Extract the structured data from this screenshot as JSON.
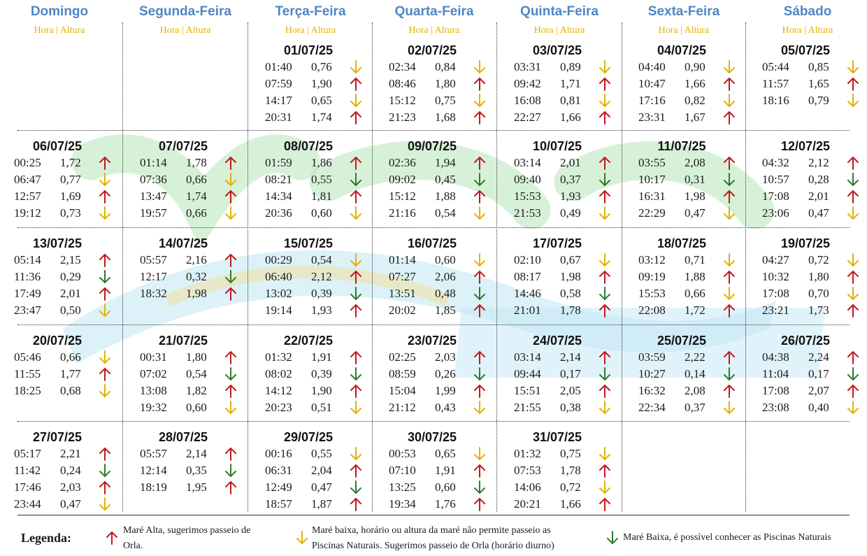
{
  "header": {
    "days": [
      "Domingo",
      "Segunda-Feira",
      "Terça-Feira",
      "Quarta-Feira",
      "Quinta-Feira",
      "Sexta-Feira",
      "Sábado"
    ],
    "subheader": "Hora | Altura"
  },
  "weeks": [
    [
      null,
      null,
      {
        "date": "01/07/25",
        "tides": [
          [
            "01:40",
            "0,76",
            "low-yellow"
          ],
          [
            "07:59",
            "1,90",
            "high"
          ],
          [
            "14:17",
            "0,65",
            "low-yellow"
          ],
          [
            "20:31",
            "1,74",
            "high"
          ]
        ]
      },
      {
        "date": "02/07/25",
        "tides": [
          [
            "02:34",
            "0,84",
            "low-yellow"
          ],
          [
            "08:46",
            "1,80",
            "high"
          ],
          [
            "15:12",
            "0,75",
            "low-yellow"
          ],
          [
            "21:23",
            "1,68",
            "high"
          ]
        ]
      },
      {
        "date": "03/07/25",
        "tides": [
          [
            "03:31",
            "0,89",
            "low-yellow"
          ],
          [
            "09:42",
            "1,71",
            "high"
          ],
          [
            "16:08",
            "0,81",
            "low-yellow"
          ],
          [
            "22:27",
            "1,66",
            "high"
          ]
        ]
      },
      {
        "date": "04/07/25",
        "tides": [
          [
            "04:40",
            "0,90",
            "low-yellow"
          ],
          [
            "10:47",
            "1,66",
            "high"
          ],
          [
            "17:16",
            "0,82",
            "low-yellow"
          ],
          [
            "23:31",
            "1,67",
            "high"
          ]
        ]
      },
      {
        "date": "05/07/25",
        "tides": [
          [
            "05:44",
            "0,85",
            "low-yellow"
          ],
          [
            "11:57",
            "1,65",
            "high"
          ],
          [
            "18:16",
            "0,79",
            "low-yellow"
          ]
        ]
      }
    ],
    [
      {
        "date": "06/07/25",
        "tides": [
          [
            "00:25",
            "1,72",
            "high"
          ],
          [
            "06:47",
            "0,77",
            "low-yellow"
          ],
          [
            "12:57",
            "1,69",
            "high"
          ],
          [
            "19:12",
            "0,73",
            "low-yellow"
          ]
        ]
      },
      {
        "date": "07/07/25",
        "tides": [
          [
            "01:14",
            "1,78",
            "high"
          ],
          [
            "07:36",
            "0,66",
            "low-yellow"
          ],
          [
            "13:47",
            "1,74",
            "high"
          ],
          [
            "19:57",
            "0,66",
            "low-yellow"
          ]
        ]
      },
      {
        "date": "08/07/25",
        "tides": [
          [
            "01:59",
            "1,86",
            "high"
          ],
          [
            "08:21",
            "0,55",
            "low-green"
          ],
          [
            "14:34",
            "1,81",
            "high"
          ],
          [
            "20:36",
            "0,60",
            "low-yellow"
          ]
        ]
      },
      {
        "date": "09/07/25",
        "tides": [
          [
            "02:36",
            "1,94",
            "high"
          ],
          [
            "09:02",
            "0,45",
            "low-green"
          ],
          [
            "15:12",
            "1,88",
            "high"
          ],
          [
            "21:16",
            "0,54",
            "low-yellow"
          ]
        ]
      },
      {
        "date": "10/07/25",
        "tides": [
          [
            "03:14",
            "2,01",
            "high"
          ],
          [
            "09:40",
            "0,37",
            "low-green"
          ],
          [
            "15:53",
            "1,93",
            "high"
          ],
          [
            "21:53",
            "0,49",
            "low-yellow"
          ]
        ]
      },
      {
        "date": "11/07/25",
        "tides": [
          [
            "03:55",
            "2,08",
            "high"
          ],
          [
            "10:17",
            "0,31",
            "low-green"
          ],
          [
            "16:31",
            "1,98",
            "high"
          ],
          [
            "22:29",
            "0,47",
            "low-yellow"
          ]
        ]
      },
      {
        "date": "12/07/25",
        "tides": [
          [
            "04:32",
            "2,12",
            "high"
          ],
          [
            "10:57",
            "0,28",
            "low-green"
          ],
          [
            "17:08",
            "2,01",
            "high"
          ],
          [
            "23:06",
            "0,47",
            "low-yellow"
          ]
        ]
      }
    ],
    [
      {
        "date": "13/07/25",
        "tides": [
          [
            "05:14",
            "2,15",
            "high"
          ],
          [
            "11:36",
            "0,29",
            "low-green"
          ],
          [
            "17:49",
            "2,01",
            "high"
          ],
          [
            "23:47",
            "0,50",
            "low-yellow"
          ]
        ]
      },
      {
        "date": "14/07/25",
        "tides": [
          [
            "05:57",
            "2,16",
            "high"
          ],
          [
            "12:17",
            "0,32",
            "low-green"
          ],
          [
            "18:32",
            "1,98",
            "high"
          ]
        ]
      },
      {
        "date": "15/07/25",
        "tides": [
          [
            "00:29",
            "0,54",
            "low-yellow"
          ],
          [
            "06:40",
            "2,12",
            "high"
          ],
          [
            "13:02",
            "0,39",
            "low-green"
          ],
          [
            "19:14",
            "1,93",
            "high"
          ]
        ]
      },
      {
        "date": "16/07/25",
        "tides": [
          [
            "01:14",
            "0,60",
            "low-yellow"
          ],
          [
            "07:27",
            "2,06",
            "high"
          ],
          [
            "13:51",
            "0,48",
            "low-green"
          ],
          [
            "20:02",
            "1,85",
            "high"
          ]
        ]
      },
      {
        "date": "17/07/25",
        "tides": [
          [
            "02:10",
            "0,67",
            "low-yellow"
          ],
          [
            "08:17",
            "1,98",
            "high"
          ],
          [
            "14:46",
            "0,58",
            "low-green"
          ],
          [
            "21:01",
            "1,78",
            "high"
          ]
        ]
      },
      {
        "date": "18/07/25",
        "tides": [
          [
            "03:12",
            "0,71",
            "low-yellow"
          ],
          [
            "09:19",
            "1,88",
            "high"
          ],
          [
            "15:53",
            "0,66",
            "low-yellow"
          ],
          [
            "22:08",
            "1,72",
            "high"
          ]
        ]
      },
      {
        "date": "19/07/25",
        "tides": [
          [
            "04:27",
            "0,72",
            "low-yellow"
          ],
          [
            "10:32",
            "1,80",
            "high"
          ],
          [
            "17:08",
            "0,70",
            "low-yellow"
          ],
          [
            "23:21",
            "1,73",
            "high"
          ]
        ]
      }
    ],
    [
      {
        "date": "20/07/25",
        "tides": [
          [
            "05:46",
            "0,66",
            "low-yellow"
          ],
          [
            "11:55",
            "1,77",
            "high"
          ],
          [
            "18:25",
            "0,68",
            "low-yellow"
          ]
        ]
      },
      {
        "date": "21/07/25",
        "tides": [
          [
            "00:31",
            "1,80",
            "high"
          ],
          [
            "07:02",
            "0,54",
            "low-green"
          ],
          [
            "13:08",
            "1,82",
            "high"
          ],
          [
            "19:32",
            "0,60",
            "low-yellow"
          ]
        ]
      },
      {
        "date": "22/07/25",
        "tides": [
          [
            "01:32",
            "1,91",
            "high"
          ],
          [
            "08:02",
            "0,39",
            "low-green"
          ],
          [
            "14:12",
            "1,90",
            "high"
          ],
          [
            "20:23",
            "0,51",
            "low-yellow"
          ]
        ]
      },
      {
        "date": "23/07/25",
        "tides": [
          [
            "02:25",
            "2,03",
            "high"
          ],
          [
            "08:59",
            "0,26",
            "low-green"
          ],
          [
            "15:04",
            "1,99",
            "high"
          ],
          [
            "21:12",
            "0,43",
            "low-yellow"
          ]
        ]
      },
      {
        "date": "24/07/25",
        "tides": [
          [
            "03:14",
            "2,14",
            "high"
          ],
          [
            "09:44",
            "0,17",
            "low-green"
          ],
          [
            "15:51",
            "2,05",
            "high"
          ],
          [
            "21:55",
            "0,38",
            "low-yellow"
          ]
        ]
      },
      {
        "date": "25/07/25",
        "tides": [
          [
            "03:59",
            "2,22",
            "high"
          ],
          [
            "10:27",
            "0,14",
            "low-green"
          ],
          [
            "16:32",
            "2,08",
            "high"
          ],
          [
            "22:34",
            "0,37",
            "low-yellow"
          ]
        ]
      },
      {
        "date": "26/07/25",
        "tides": [
          [
            "04:38",
            "2,24",
            "high"
          ],
          [
            "11:04",
            "0,17",
            "low-green"
          ],
          [
            "17:08",
            "2,07",
            "high"
          ],
          [
            "23:08",
            "0,40",
            "low-yellow"
          ]
        ]
      }
    ],
    [
      {
        "date": "27/07/25",
        "tides": [
          [
            "05:17",
            "2,21",
            "high"
          ],
          [
            "11:42",
            "0,24",
            "low-green"
          ],
          [
            "17:46",
            "2,03",
            "high"
          ],
          [
            "23:44",
            "0,47",
            "low-yellow"
          ]
        ]
      },
      {
        "date": "28/07/25",
        "tides": [
          [
            "05:57",
            "2,14",
            "high"
          ],
          [
            "12:14",
            "0,35",
            "low-green"
          ],
          [
            "18:19",
            "1,95",
            "high"
          ]
        ]
      },
      {
        "date": "29/07/25",
        "tides": [
          [
            "00:16",
            "0,55",
            "low-yellow"
          ],
          [
            "06:31",
            "2,04",
            "high"
          ],
          [
            "12:49",
            "0,47",
            "low-green"
          ],
          [
            "18:57",
            "1,87",
            "high"
          ]
        ]
      },
      {
        "date": "30/07/25",
        "tides": [
          [
            "00:53",
            "0,65",
            "low-yellow"
          ],
          [
            "07:10",
            "1,91",
            "high"
          ],
          [
            "13:25",
            "0,60",
            "low-green"
          ],
          [
            "19:34",
            "1,76",
            "high"
          ]
        ]
      },
      {
        "date": "31/07/25",
        "tides": [
          [
            "01:32",
            "0,75",
            "low-yellow"
          ],
          [
            "07:53",
            "1,78",
            "high"
          ],
          [
            "14:06",
            "0,72",
            "low-yellow"
          ],
          [
            "20:21",
            "1,66",
            "high"
          ]
        ]
      },
      null,
      null
    ]
  ],
  "legend": {
    "title": "Legenda:",
    "high_line1": "Maré Alta, sugerimos passeio de",
    "high_line2": "Orla.",
    "yellow_line1": "Maré baixa, horário ou altura da maré não permite passeio as",
    "yellow_line2": "Piscinas Naturais. Sugerimos passeio de Orla (horário diurno)",
    "green": "Maré Baixa, é possível conhecer as Piscinas Naturais"
  },
  "colors": {
    "header": "#4f86c6",
    "subheader": "#e3b100",
    "high": "#c0191c",
    "low-yellow": "#e3b100",
    "low-green": "#2f7a2f"
  },
  "icons": {
    "high": "arrow-up-icon",
    "low-yellow": "arrow-down-icon",
    "low-green": "arrow-down-icon"
  }
}
